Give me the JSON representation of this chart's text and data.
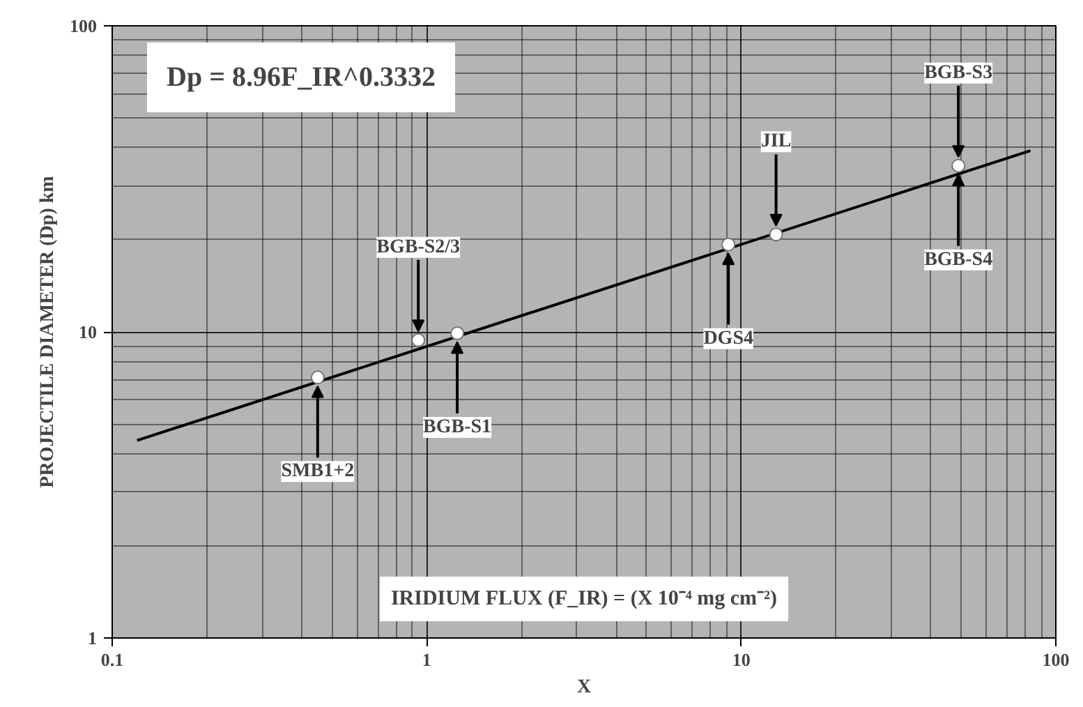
{
  "chart_data": {
    "type": "scatter",
    "xlabel": "X",
    "ylabel": "PROJECTILE DIAMETER (Dp) km",
    "log": "xy",
    "xlim": [
      0.1,
      100
    ],
    "ylim": [
      1,
      100
    ],
    "xticks": [
      0.1,
      1,
      10,
      100
    ],
    "yticks": [
      1,
      10,
      100
    ],
    "grid": true,
    "series": [
      {
        "marker": "circle",
        "color": "#ffffff",
        "x": [
          0.45,
          0.94,
          1.25,
          9.1,
          12.9,
          49
        ],
        "values": [
          7.1,
          9.4,
          9.9,
          19.3,
          20.8,
          34.9
        ]
      },
      {
        "type": "line",
        "marker": "none",
        "color": "#000000",
        "x": [
          0.12,
          83
        ],
        "values": [
          4.42,
          39.1
        ]
      }
    ],
    "annotations": [
      "Dp = 8.96F_IR^0.3332",
      "IRIDIUM FLUX (F_IR) = (X 10⁻⁴ mg cm⁻²)",
      {
        "text": "SMB1+2",
        "x": 0.45,
        "y": 7.1
      },
      {
        "text": "BGB-S2/3",
        "x": 0.94,
        "y": 9.4
      },
      {
        "text": "BGB-S1",
        "x": 1.25,
        "y": 9.9
      },
      {
        "text": "DGS4",
        "x": 9.1,
        "y": 19.3
      },
      {
        "text": "JIL",
        "x": 12.9,
        "y": 20.8
      },
      {
        "text": "BGB-S3",
        "x": 49,
        "y": 34.9
      },
      {
        "text": "BGB-S4",
        "x": 49,
        "y": 34.9
      }
    ]
  }
}
